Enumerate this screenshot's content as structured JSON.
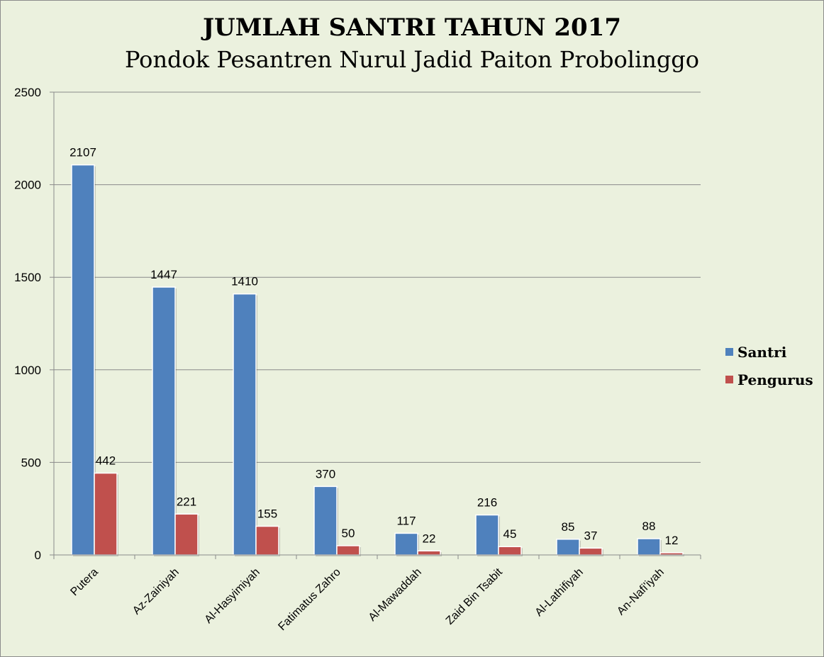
{
  "chart_data": {
    "type": "bar",
    "title": "JUMLAH SANTRI TAHUN 2017",
    "subtitle": "Pondok Pesantren Nurul Jadid Paiton Probolinggo",
    "categories": [
      "Putera",
      "Az-Zainiyah",
      "Al-Hasyimiyah",
      "Fatimatus Zahro",
      "Al-Mawaddah",
      "Zaid Bin Tsabit",
      "Al-Lathifiyah",
      "An-Nafi'iyah"
    ],
    "series": [
      {
        "name": "Santri",
        "color": "#4f81bd",
        "values": [
          2107,
          1447,
          1410,
          370,
          117,
          216,
          85,
          88
        ]
      },
      {
        "name": "Pengurus",
        "color": "#c0504d",
        "values": [
          442,
          221,
          155,
          50,
          22,
          45,
          37,
          12
        ]
      }
    ],
    "ylim": [
      0,
      2500
    ],
    "yticks": [
      0,
      500,
      1000,
      1500,
      2000,
      2500
    ],
    "grid": true,
    "legend": "right"
  }
}
